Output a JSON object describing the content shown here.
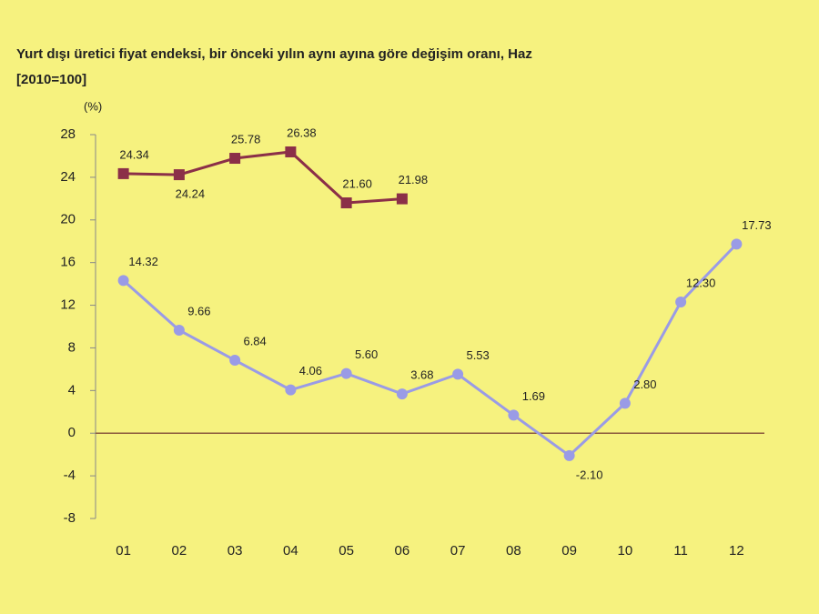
{
  "chart_data": {
    "type": "line",
    "title": "Yurt dışı üretici fiyat endeksi, bir önceki yılın aynı ayına göre değişim oranı, Haz",
    "subtitle": "[2010=100]",
    "y_label": "(%)",
    "categories": [
      "01",
      "02",
      "03",
      "04",
      "05",
      "06",
      "07",
      "08",
      "09",
      "10",
      "11",
      "12"
    ],
    "series": [
      {
        "color": "#8b2f48",
        "marker": "square",
        "values": [
          24.34,
          24.24,
          25.78,
          26.38,
          21.6,
          21.98,
          null,
          null,
          null,
          null,
          null,
          null
        ],
        "value_labels": [
          "24.34",
          "24.24",
          "25.78",
          "26.38",
          "21.60",
          "21.98",
          null,
          null,
          null,
          null,
          null,
          null
        ]
      },
      {
        "color": "#9a9be6",
        "marker": "diamond",
        "values": [
          14.32,
          9.66,
          6.84,
          4.06,
          5.6,
          3.68,
          5.53,
          1.69,
          -2.1,
          2.8,
          12.3,
          17.73
        ],
        "value_labels": [
          "14.32",
          "9.66",
          "6.84",
          "4.06",
          "5.60",
          "3.68",
          "5.53",
          "1.69",
          "-2.10",
          "2.80",
          "12.30",
          "17.73"
        ]
      }
    ],
    "ylim": [
      -8,
      28
    ],
    "yticks": [
      -8,
      -4,
      0,
      4,
      8,
      12,
      16,
      20,
      24,
      28
    ]
  }
}
